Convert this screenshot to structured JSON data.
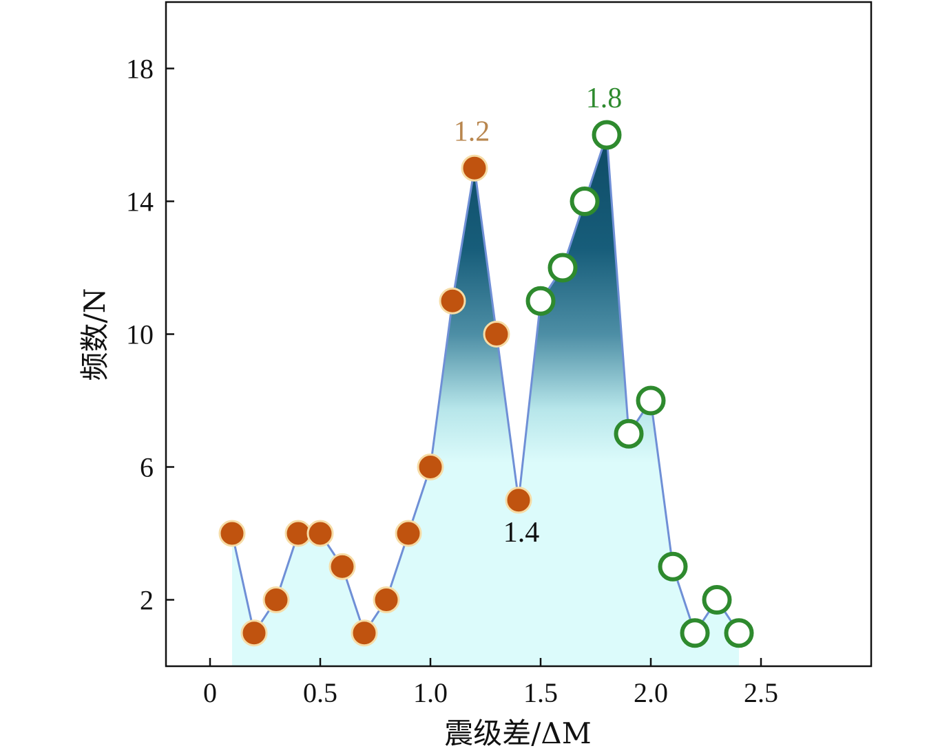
{
  "chart_data": {
    "type": "line",
    "title": "",
    "xlabel": "震级差/ΔM",
    "ylabel": "频数/N",
    "xlim": [
      -0.2,
      3.0
    ],
    "ylim": [
      0,
      20
    ],
    "xticks": [
      0,
      0.5,
      1.0,
      1.5,
      2.0,
      2.5
    ],
    "xtick_labels": [
      "0",
      "0.5",
      "1.0",
      "1.5",
      "2.0",
      "2.5"
    ],
    "yticks": [
      2,
      6,
      10,
      14,
      18
    ],
    "ytick_labels": [
      "2",
      "6",
      "10",
      "14",
      "18"
    ],
    "grid": false,
    "colors": {
      "line": "#6f8fd6",
      "filled_marker": "#c0530f",
      "filled_marker_ring": "#f6dca6",
      "open_marker": "#2e8a2e",
      "fill_light": "#dcfbfb",
      "fill_dark": "#0e4a64",
      "anno_1": "#b8864e",
      "anno_2": "#2e8a2e",
      "anno_3": "#111111"
    },
    "series": [
      {
        "marker": "filled",
        "x": [
          0.1,
          0.2,
          0.3,
          0.4,
          0.5,
          0.6,
          0.7,
          0.8,
          0.9,
          1.0,
          1.1,
          1.2,
          1.3,
          1.4
        ],
        "y": [
          4,
          1,
          2,
          4,
          4,
          3,
          1,
          2,
          4,
          6,
          11,
          15,
          10,
          5
        ]
      },
      {
        "marker": "open",
        "x": [
          1.5,
          1.6,
          1.7,
          1.8,
          1.9,
          2.0,
          2.1,
          2.2,
          2.3,
          2.4
        ],
        "y": [
          11,
          12,
          14,
          16,
          7,
          8,
          3,
          1,
          2,
          1
        ]
      }
    ],
    "annotations": [
      {
        "text": "1.2",
        "x": 1.2,
        "y": 15,
        "color_key": "anno_1",
        "position": "above"
      },
      {
        "text": "1.8",
        "x": 1.8,
        "y": 16,
        "color_key": "anno_2",
        "position": "above"
      },
      {
        "text": "1.4",
        "x": 1.4,
        "y": 5,
        "color_key": "anno_3",
        "position": "below"
      }
    ]
  }
}
